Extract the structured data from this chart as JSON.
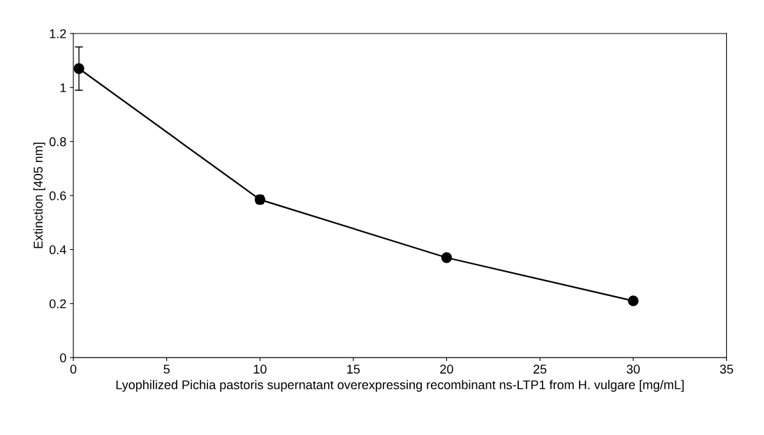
{
  "chart_data": {
    "type": "line",
    "xlabel": "Lyophilized Pichia pastoris supernatant overexpressing recombinant ns-LTP1 from H. vulgare [mg/mL]",
    "ylabel": "Extinction [405 nm]",
    "x": [
      0.3,
      10,
      20,
      30
    ],
    "series": [
      {
        "color": "#000000",
        "values": [
          1.07,
          0.585,
          0.37,
          0.21
        ],
        "errors": [
          [
            0.99,
            1.15
          ],
          [
            0.57,
            0.6
          ],
          null,
          null
        ]
      }
    ],
    "xlim": [
      0,
      35
    ],
    "xticks": [
      0,
      5,
      10,
      15,
      20,
      25,
      30,
      35
    ],
    "ylim": [
      0,
      1.2
    ],
    "yticks": [
      0,
      0.2,
      0.4,
      0.6,
      0.8,
      1,
      1.2
    ],
    "grid": false,
    "legend": false,
    "marker": "circle",
    "line_style": "solid"
  }
}
